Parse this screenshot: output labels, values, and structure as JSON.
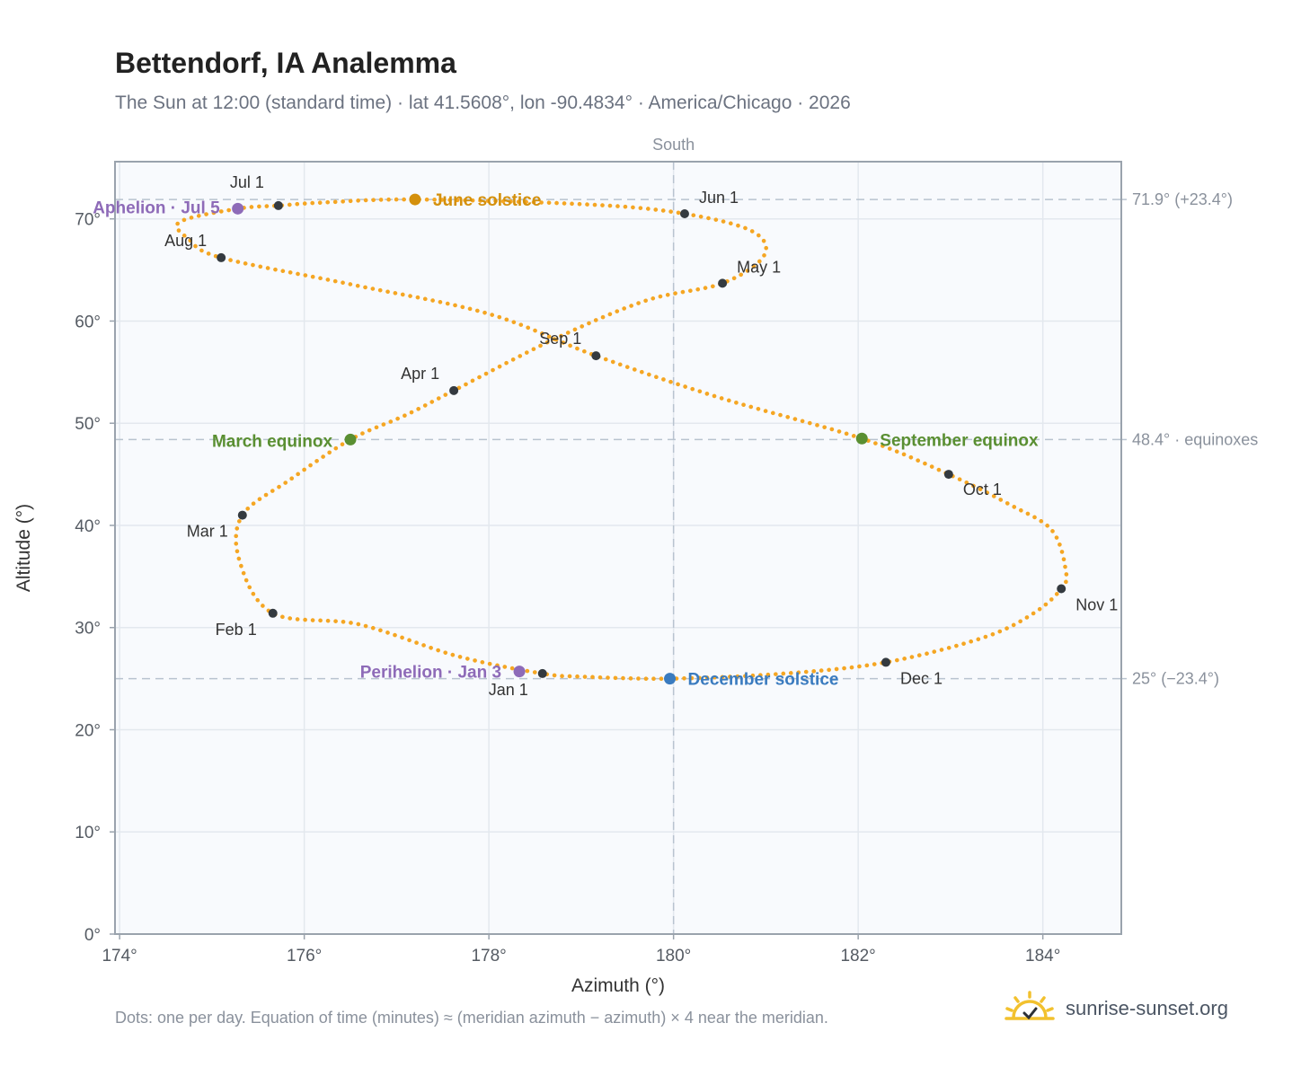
{
  "title": "Bettendorf, IA Analemma",
  "subtitle": "The Sun at 12:00 (standard time) · lat 41.5608°, lon -90.4834° · America/Chicago · 2026",
  "footnote": "Dots: one per day. Equation of time (minutes) ≈ (meridian azimuth − azimuth) × 4 near the meridian.",
  "brand": {
    "text": "sunrise-sunset.org",
    "icon": "sun-logo-icon",
    "icon_color": "#f2c12e"
  },
  "colors": {
    "path": "#f5a623",
    "month": "#343a40",
    "solstice_june": "#d4900c",
    "solstice_december": "#3a7bbf",
    "equinox": "#5a8f32",
    "apsis": "#8e6bb8",
    "grid": "#e3e8ee",
    "plot_bg": "#f8fafd",
    "axis": "#9aa3ad",
    "ref_line": "#b8c3cf"
  },
  "chart_data": {
    "type": "scatter",
    "title": "Bettendorf, IA Analemma",
    "xlabel": "Azimuth (°)",
    "ylabel": "Altitude (°)",
    "xlim": [
      173.95,
      184.85
    ],
    "ylim": [
      0,
      75.6
    ],
    "x_ticks": [
      174,
      176,
      178,
      180,
      182,
      184
    ],
    "x_tick_labels": [
      "174°",
      "176°",
      "178°",
      "180°",
      "182°",
      "184°"
    ],
    "y_ticks": [
      0,
      10,
      20,
      30,
      40,
      50,
      60,
      70
    ],
    "y_tick_labels": [
      "0°",
      "10°",
      "20°",
      "30°",
      "40°",
      "50°",
      "60°",
      "70°"
    ],
    "grid": true,
    "meridian": {
      "azimuth": 180,
      "label": "South"
    },
    "reference_lines": [
      {
        "altitude": 71.9,
        "label": "71.9° (+23.4°)"
      },
      {
        "altitude": 48.4,
        "label": "48.4° · equinoxes"
      },
      {
        "altitude": 25.0,
        "label": "25° (−23.4°)"
      }
    ],
    "series": [
      {
        "kind": "daily_path",
        "points": [
          [
            178.58,
            25.5
          ],
          [
            177.66,
            27.2
          ],
          [
            176.6,
            30.3
          ],
          [
            175.66,
            31.4
          ],
          [
            175.3,
            36.5
          ],
          [
            175.33,
            41.0
          ],
          [
            175.85,
            44.5
          ],
          [
            176.5,
            48.4
          ],
          [
            177.1,
            50.8
          ],
          [
            177.62,
            53.2
          ],
          [
            178.7,
            58.2
          ],
          [
            179.7,
            62.0
          ],
          [
            180.53,
            63.7
          ],
          [
            180.98,
            66.4
          ],
          [
            180.85,
            68.8
          ],
          [
            180.12,
            70.5
          ],
          [
            179.1,
            71.4
          ],
          [
            177.2,
            71.9
          ],
          [
            176.2,
            71.6
          ],
          [
            175.72,
            71.3
          ],
          [
            175.28,
            71.0
          ],
          [
            174.65,
            69.7
          ],
          [
            174.75,
            68.0
          ],
          [
            175.1,
            66.2
          ],
          [
            176.5,
            63.6
          ],
          [
            178.0,
            60.7
          ],
          [
            179.16,
            56.6
          ],
          [
            180.5,
            52.5
          ],
          [
            182.04,
            48.5
          ],
          [
            182.98,
            45.0
          ],
          [
            183.65,
            42.0
          ],
          [
            184.1,
            39.5
          ],
          [
            184.25,
            35.5
          ],
          [
            184.2,
            33.8
          ],
          [
            183.9,
            31.4
          ],
          [
            183.35,
            29.0
          ],
          [
            182.3,
            26.6
          ],
          [
            181.2,
            25.5
          ],
          [
            179.96,
            25.0
          ],
          [
            179.0,
            25.2
          ],
          [
            178.58,
            25.5
          ]
        ]
      },
      {
        "kind": "month_markers",
        "points": [
          {
            "label": "Jan 1",
            "az": 178.58,
            "alt": 25.5
          },
          {
            "label": "Feb 1",
            "az": 175.66,
            "alt": 31.4
          },
          {
            "label": "Mar 1",
            "az": 175.33,
            "alt": 41.0
          },
          {
            "label": "Apr 1",
            "az": 177.62,
            "alt": 53.2
          },
          {
            "label": "May 1",
            "az": 180.53,
            "alt": 63.7
          },
          {
            "label": "Jun 1",
            "az": 180.12,
            "alt": 70.5
          },
          {
            "label": "Jul 1",
            "az": 175.72,
            "alt": 71.3
          },
          {
            "label": "Aug 1",
            "az": 175.1,
            "alt": 66.2
          },
          {
            "label": "Sep 1",
            "az": 179.16,
            "alt": 56.6
          },
          {
            "label": "Oct 1",
            "az": 182.98,
            "alt": 45.0
          },
          {
            "label": "Nov 1",
            "az": 184.2,
            "alt": 33.8
          },
          {
            "label": "Dec 1",
            "az": 182.3,
            "alt": 26.6
          }
        ]
      },
      {
        "kind": "events",
        "points": [
          {
            "label": "June solstice",
            "az": 177.2,
            "alt": 71.9,
            "color_key": "solstice_june"
          },
          {
            "label": "December solstice",
            "az": 179.96,
            "alt": 25.0,
            "color_key": "solstice_december"
          },
          {
            "label": "March equinox",
            "az": 176.5,
            "alt": 48.4,
            "color_key": "equinox"
          },
          {
            "label": "September equinox",
            "az": 182.04,
            "alt": 48.5,
            "color_key": "equinox"
          },
          {
            "label": "Aphelion · Jul 5",
            "az": 175.28,
            "alt": 71.0,
            "color_key": "apsis"
          },
          {
            "label": "Perihelion · Jan 3",
            "az": 178.33,
            "alt": 25.7,
            "color_key": "apsis"
          }
        ]
      }
    ]
  }
}
